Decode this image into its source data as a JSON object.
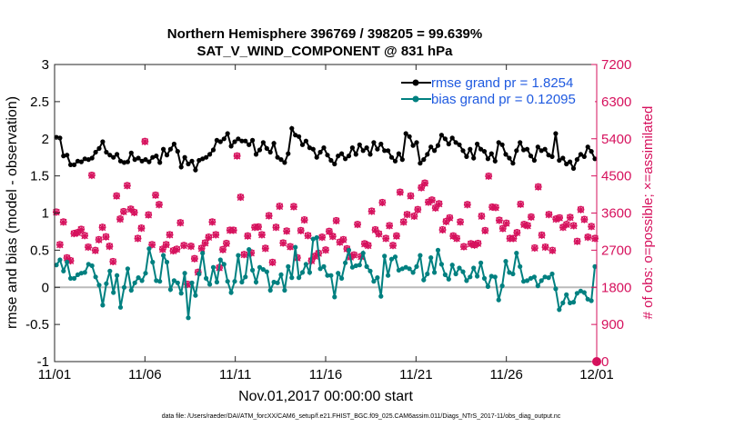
{
  "chart_data": {
    "type": "line",
    "title_line1": "Northern Hemisphere 396769 / 398205 = 99.639%",
    "title_line2": "SAT_V_WIND_COMPONENT @ 831 hPa",
    "xlabel": "Nov.01,2017 00:00:00 start",
    "ylabel": "rmse and bias (model - observation)",
    "y2label": "# of obs: o=possible; ×=assimilated",
    "footnote": "data file: /Users/raeder/DAI/ATM_forcXX/CAM6_setup/f.e21.FHIST_BGC.f09_025.CAM6assim.011/Diags_NTrS_2017-11/obs_diag_output.nc",
    "xlim": [
      0,
      30
    ],
    "ylim": [
      -1,
      3
    ],
    "y2lim": [
      0,
      7200
    ],
    "x_ticks": [
      0,
      5,
      10,
      15,
      20,
      25,
      30
    ],
    "x_tick_labels": [
      "11/01",
      "11/06",
      "11/11",
      "11/16",
      "11/21",
      "11/26",
      "12/01"
    ],
    "y_ticks": [
      "-1",
      "-0.5",
      "0",
      "0.5",
      "1",
      "1.5",
      "2",
      "2.5",
      "3"
    ],
    "y2_ticks": [
      "0",
      "900",
      "1800",
      "2700",
      "3600",
      "4500",
      "5400",
      "6300",
      "7200"
    ],
    "grid": false,
    "legend_position": "top-right",
    "series": [
      {
        "name": "rmse grand pr = 1.8254",
        "color": "#000000",
        "axis": "left",
        "values": [
          2.02,
          2.01,
          1.77,
          1.78,
          1.65,
          1.65,
          1.7,
          1.69,
          1.73,
          1.72,
          1.74,
          1.82,
          1.87,
          1.96,
          1.82,
          1.78,
          1.75,
          1.79,
          1.7,
          1.68,
          1.69,
          1.81,
          1.72,
          1.74,
          1.7,
          1.72,
          1.69,
          1.75,
          1.77,
          1.68,
          1.86,
          1.78,
          1.86,
          1.93,
          1.83,
          1.62,
          1.75,
          1.66,
          1.7,
          1.58,
          1.71,
          1.73,
          1.75,
          1.79,
          1.85,
          1.98,
          1.96,
          2.0,
          2.07,
          1.9,
          1.96,
          2.0,
          1.97,
          1.97,
          1.92,
          1.98,
          1.79,
          1.85,
          1.95,
          1.87,
          1.82,
          1.94,
          1.75,
          1.72,
          1.68,
          1.8,
          2.14,
          2.05,
          2.03,
          1.92,
          1.97,
          1.88,
          1.86,
          1.75,
          1.82,
          1.88,
          1.78,
          1.71,
          1.66,
          1.77,
          1.8,
          1.73,
          1.77,
          1.88,
          1.79,
          1.92,
          1.84,
          1.88,
          1.79,
          1.95,
          1.86,
          1.93,
          1.84,
          1.84,
          1.75,
          1.7,
          1.8,
          1.72,
          2.07,
          2.03,
          1.91,
          1.95,
          1.67,
          1.72,
          1.79,
          1.89,
          1.84,
          1.91,
          2.05,
          2.0,
          1.93,
          2.01,
          1.95,
          1.92,
          1.84,
          1.76,
          1.86,
          1.74,
          1.93,
          1.86,
          1.83,
          1.73,
          1.8,
          1.7,
          1.95,
          1.92,
          1.79,
          1.74,
          1.67,
          1.84,
          1.95,
          1.85,
          1.86,
          1.77,
          1.71,
          1.89,
          1.84,
          1.86,
          1.78,
          1.76,
          2.07,
          1.71,
          1.74,
          1.66,
          1.69,
          1.6,
          1.72,
          1.79,
          1.76,
          1.89,
          1.83,
          1.73
        ]
      },
      {
        "name": "bias grand pr = 0.12095",
        "color": "#008080",
        "axis": "left",
        "values": [
          0.3,
          0.37,
          0.22,
          0.34,
          0.12,
          0.12,
          0.17,
          0.19,
          0.2,
          0.31,
          0.29,
          0.14,
          0.03,
          -0.24,
          0.05,
          0.22,
          -0.07,
          0.16,
          -0.27,
          -0.0,
          0.25,
          -0.04,
          0.06,
          0.13,
          0.09,
          0.19,
          0.52,
          0.34,
          0.09,
          0.08,
          0.43,
          0.34,
          -0.03,
          0.09,
          0.06,
          -0.08,
          0.19,
          -0.41,
          0.06,
          -0.11,
          0.18,
          0.46,
          0.12,
          0.04,
          0.27,
          0.07,
          0.37,
          0.31,
          0.08,
          -0.07,
          0.08,
          0.43,
          0.07,
          0.14,
          0.51,
          0.23,
          0.07,
          0.27,
          0.24,
          0.21,
          -0.04,
          0.07,
          0.06,
          0.17,
          -0.04,
          0.28,
          0.13,
          0.54,
          0.13,
          0.2,
          0.31,
          0.2,
          0.65,
          0.67,
          0.25,
          0.28,
          0.16,
          0.16,
          -0.13,
          0.19,
          0.12,
          0.33,
          0.5,
          0.27,
          0.29,
          0.3,
          0.46,
          0.28,
          0.22,
          0.08,
          0.13,
          -0.12,
          0.42,
          0.16,
          0.38,
          0.41,
          0.23,
          0.25,
          0.27,
          0.25,
          0.2,
          0.28,
          0.43,
          0.1,
          0.18,
          0.4,
          0.2,
          0.5,
          0.31,
          0.17,
          0.11,
          0.3,
          0.18,
          0.26,
          0.21,
          0.09,
          0.14,
          0.26,
          0.15,
          0.33,
          0.12,
          0.01,
          0.15,
          0.14,
          -0.17,
          0.02,
          0.35,
          0.2,
          0.18,
          0.46,
          0.28,
          0.08,
          0.09,
          0.12,
          0.14,
          0.02,
          0.09,
          0.14,
          0.13,
          0.18,
          -0.02,
          -0.3,
          -0.21,
          -0.1,
          -0.21,
          -0.2,
          -0.08,
          -0.05,
          -0.07,
          -0.16,
          -0.18,
          0.28
        ]
      }
    ],
    "obs_possible": {
      "name": "possible",
      "marker": "o",
      "color": "#d6115d",
      "axis": "right",
      "values": [
        3630,
        2840,
        3390,
        2520,
        2450,
        3110,
        3130,
        3210,
        3060,
        2780,
        4520,
        2700,
        2960,
        3260,
        3030,
        2800,
        2430,
        4020,
        3460,
        3640,
        4270,
        3700,
        3620,
        2990,
        3240,
        5340,
        3560,
        2840,
        4040,
        3810,
        2730,
        2840,
        3080,
        2690,
        2730,
        3370,
        2820,
        1880,
        2800,
        2500,
        2170,
        2750,
        2880,
        3020,
        3390,
        3080,
        2280,
        2720,
        2870,
        3190,
        3190,
        4990,
        3990,
        2600,
        3050,
        2640,
        3260,
        3270,
        3080,
        2750,
        3540,
        2410,
        3260,
        3770,
        2880,
        3170,
        2790,
        3760,
        2520,
        3180,
        3440,
        3060,
        2450,
        2560,
        2630,
        3020,
        2710,
        3160,
        3040,
        3420,
        2900,
        2960,
        2740,
        2540,
        2590,
        3330,
        2550,
        2860,
        2820,
        3650,
        3200,
        3100,
        3860,
        2990,
        3300,
        2820,
        3050,
        4110,
        3390,
        3570,
        4020,
        3530,
        3690,
        4220,
        4330,
        3870,
        3920,
        3730,
        3830,
        3200,
        3400,
        3490,
        3050,
        2990,
        3390,
        2790,
        3810,
        2860,
        2830,
        2870,
        3530,
        3180,
        4500,
        3750,
        3740,
        3430,
        3230,
        3360,
        2990,
        2990,
        3130,
        3820,
        3330,
        3300,
        3510,
        2760,
        4240,
        3070,
        2780,
        3570,
        2700,
        3460,
        3490,
        3260,
        3330,
        3500,
        3300,
        2920,
        3690,
        3450,
        3020,
        3280,
        2990
      ]
    },
    "obs_assimilated": {
      "name": "assimilated",
      "marker": "×",
      "color": "#d6115d",
      "axis": "right",
      "values": [
        3620,
        2830,
        3380,
        2510,
        2440,
        3100,
        3120,
        3200,
        3050,
        2770,
        4510,
        2690,
        2950,
        3250,
        3020,
        2790,
        2420,
        4010,
        3450,
        3630,
        4260,
        3690,
        3610,
        2980,
        3230,
        5330,
        3550,
        2830,
        4030,
        3800,
        2720,
        2830,
        3070,
        2680,
        2720,
        3360,
        2810,
        1870,
        2790,
        2490,
        2160,
        2740,
        2870,
        3010,
        3380,
        3070,
        2270,
        2710,
        2860,
        3180,
        3180,
        4980,
        3980,
        2590,
        3040,
        2630,
        3250,
        3260,
        3070,
        2740,
        3530,
        2400,
        3250,
        3760,
        2870,
        3160,
        2780,
        3750,
        2510,
        3170,
        3430,
        3050,
        2440,
        2550,
        2620,
        3010,
        2700,
        3150,
        3030,
        3410,
        2890,
        2950,
        2730,
        2530,
        2580,
        3320,
        2540,
        2850,
        2810,
        3640,
        3190,
        3090,
        3850,
        2980,
        3290,
        2810,
        3040,
        4100,
        3380,
        3560,
        4010,
        3520,
        3680,
        4210,
        4320,
        3860,
        3910,
        3720,
        3820,
        3190,
        3390,
        3480,
        3040,
        2980,
        3380,
        2780,
        3800,
        2850,
        2820,
        2860,
        3520,
        3170,
        4490,
        3740,
        3730,
        3420,
        3220,
        3350,
        2980,
        2980,
        3120,
        3810,
        3320,
        3290,
        3500,
        2750,
        4230,
        3060,
        2770,
        3560,
        2690,
        3450,
        3480,
        3250,
        3320,
        3490,
        3290,
        2910,
        3680,
        3440,
        3010,
        3270,
        2980
      ]
    },
    "final_obs_point": {
      "x": 30,
      "value": 0
    }
  }
}
